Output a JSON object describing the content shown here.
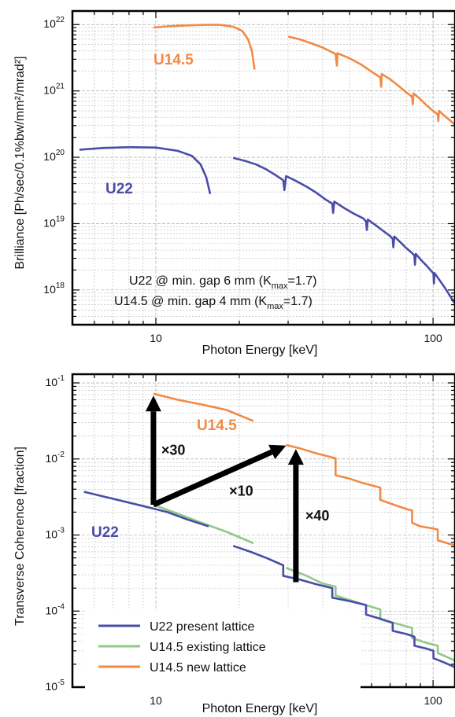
{
  "colors": {
    "u22": "#4a4da8",
    "u145_existing": "#90c987",
    "u145_new": "#f28a45",
    "arrow": "#000000"
  },
  "chart_data": [
    {
      "type": "line",
      "ylabel": "Brilliance  [Ph/sec/0.1%bw/mm²/mrad²]",
      "xlabel": "Photon Energy [keV]",
      "xscale": "log",
      "yscale": "log",
      "xlim": [
        5,
        120
      ],
      "ylim": [
        3e+17,
        1.6e+22
      ],
      "x_ticks": [
        {
          "v": 10,
          "label": "10"
        },
        {
          "v": 100,
          "label": "100"
        }
      ],
      "y_ticks": [
        {
          "v": 1e+18,
          "base": "10",
          "exp": "18"
        },
        {
          "v": 1e+19,
          "base": "10",
          "exp": "19"
        },
        {
          "v": 1e+20,
          "base": "10",
          "exp": "20"
        },
        {
          "v": 1e+21,
          "base": "10",
          "exp": "21"
        },
        {
          "v": 1e+22,
          "base": "10",
          "exp": "22"
        }
      ],
      "grid": true,
      "annotations": [
        {
          "text": "U14.5",
          "series": "u145_new"
        },
        {
          "text": "U22",
          "series": "u22"
        }
      ],
      "note_lines": [
        {
          "pre": "U22 @ min. gap 6 mm (K",
          "sub": "max",
          "post": "=1.7)"
        },
        {
          "pre": "U14.5 @ min. gap 4 mm (K",
          "sub": "max",
          "post": "=1.7)"
        }
      ],
      "series": [
        {
          "key": "u145_new",
          "segments": [
            [
              [
                9.8,
                9e+21
              ],
              [
                11,
                9.4e+21
              ],
              [
                13,
                9.7e+21
              ],
              [
                15,
                9.9e+21
              ],
              [
                17,
                9.9e+21
              ],
              [
                19,
                9.3e+21
              ],
              [
                20.5,
                8e+21
              ],
              [
                21.5,
                6e+21
              ],
              [
                22.2,
                4e+21
              ],
              [
                22.7,
                2.1e+21
              ]
            ],
            [
              [
                30,
                6.6e+21
              ],
              [
                33,
                6e+21
              ],
              [
                36,
                5.3e+21
              ],
              [
                40,
                4.5e+21
              ],
              [
                44.5,
                3.6e+21
              ],
              [
                45,
                2.4e+21
              ],
              [
                45.2,
                3.7e+21
              ],
              [
                50,
                3.1e+21
              ],
              [
                55,
                2.5e+21
              ],
              [
                60,
                1.95e+21
              ],
              [
                64.5,
                1.6e+21
              ],
              [
                65,
                1.15e+21
              ],
              [
                65.3,
                1.8e+21
              ],
              [
                70,
                1.5e+21
              ],
              [
                75,
                1.2e+21
              ],
              [
                80,
                9.5e+20
              ],
              [
                84,
                8.2e+20
              ],
              [
                84.5,
                6.3e+20
              ],
              [
                85,
                9.2e+20
              ],
              [
                90,
                7.5e+20
              ],
              [
                95,
                6e+20
              ],
              [
                100,
                5e+20
              ],
              [
                104,
                4.4e+20
              ],
              [
                104.5,
                3.5e+20
              ],
              [
                105,
                5e+20
              ],
              [
                110,
                4.2e+20
              ],
              [
                116,
                3.5e+20
              ],
              [
                121,
                3e+20
              ]
            ]
          ]
        },
        {
          "key": "u22",
          "segments": [
            [
              [
                5.3,
                1.3e+20
              ],
              [
                6.5,
                1.38e+20
              ],
              [
                8,
                1.42e+20
              ],
              [
                10,
                1.4e+20
              ],
              [
                12,
                1.25e+20
              ],
              [
                13.5,
                1.05e+20
              ],
              [
                14.5,
                7.8e+19
              ],
              [
                15.2,
                5e+19
              ],
              [
                15.7,
                2.8e+19
              ]
            ],
            [
              [
                19,
                9.8e+19
              ],
              [
                21,
                8.8e+19
              ],
              [
                23,
                7.8e+19
              ],
              [
                25,
                6.6e+19
              ],
              [
                27,
                5.4e+19
              ],
              [
                28.8,
                4.5e+19
              ],
              [
                29.1,
                3.2e+19
              ],
              [
                29.5,
                5.2e+19
              ],
              [
                32,
                4.4e+19
              ],
              [
                35,
                3.6e+19
              ],
              [
                38,
                2.9e+19
              ],
              [
                41,
                2.3e+19
              ],
              [
                43.3,
                2e+19
              ],
              [
                43.6,
                1.45e+19
              ],
              [
                44,
                2.15e+19
              ],
              [
                48,
                1.7e+19
              ],
              [
                52,
                1.4e+19
              ],
              [
                56,
                1.2e+19
              ],
              [
                57.3,
                1.08e+19
              ],
              [
                57.7,
                8e+18
              ],
              [
                58.2,
                1.15e+19
              ],
              [
                62,
                9.5e+18
              ],
              [
                66,
                7.8e+18
              ],
              [
                70,
                6.5e+18
              ],
              [
                71.5,
                5.9e+18
              ],
              [
                71.9,
                4.4e+18
              ],
              [
                72.5,
                6.4e+18
              ],
              [
                76,
                5.3e+18
              ],
              [
                80,
                4.3e+18
              ],
              [
                84,
                3.6e+18
              ],
              [
                85.7,
                3.3e+18
              ],
              [
                86,
                2.4e+18
              ],
              [
                86.6,
                3.5e+18
              ],
              [
                90,
                2.9e+18
              ],
              [
                95,
                2.3e+18
              ],
              [
                100,
                1.8e+18
              ],
              [
                100.3,
                1.75e+18
              ],
              [
                100.7,
                1.25e+18
              ],
              [
                101.2,
                1.8e+18
              ],
              [
                105,
                1.45e+18
              ],
              [
                110,
                1.1e+18
              ],
              [
                115,
                8.2e+17
              ],
              [
                120,
                6.2e+17
              ]
            ]
          ]
        }
      ]
    },
    {
      "type": "line",
      "ylabel": "Transverse Coherence [fraction]",
      "xlabel": "Photon Energy [keV]",
      "xscale": "log",
      "yscale": "log",
      "xlim": [
        5,
        120
      ],
      "ylim": [
        1e-05,
        0.13
      ],
      "x_ticks": [
        {
          "v": 10,
          "label": "10"
        },
        {
          "v": 100,
          "label": "100"
        }
      ],
      "y_ticks": [
        {
          "v": 1e-05,
          "base": "10",
          "exp": "-5"
        },
        {
          "v": 0.0001,
          "base": "10",
          "exp": "-4"
        },
        {
          "v": 0.001,
          "base": "10",
          "exp": "-3"
        },
        {
          "v": 0.01,
          "base": "10",
          "exp": "-2"
        },
        {
          "v": 0.1,
          "base": "10",
          "exp": "-1"
        }
      ],
      "grid": true,
      "annotations": [
        {
          "text": "U14.5",
          "series": "u145_new"
        },
        {
          "text": "U22",
          "series": "u22"
        }
      ],
      "arrows": [
        {
          "from": [
            9.8,
            0.0025
          ],
          "to": [
            9.8,
            0.068
          ],
          "label": "×30"
        },
        {
          "from": [
            9.8,
            0.0025
          ],
          "to": [
            29.5,
            0.015
          ],
          "label": "×10"
        },
        {
          "from": [
            32,
            0.00024
          ],
          "to": [
            32,
            0.0135
          ],
          "label": "×40"
        }
      ],
      "legend": {
        "position": "bottom-left",
        "entries": [
          {
            "series": "u22",
            "label": "U22 present lattice"
          },
          {
            "series": "u145_existing",
            "label": "U14.5 existing lattice"
          },
          {
            "series": "u145_new",
            "label": "U14.5 new lattice"
          }
        ]
      },
      "series": [
        {
          "key": "u145_new",
          "segments": [
            [
              [
                9.8,
                0.072
              ],
              [
                12,
                0.06
              ],
              [
                15,
                0.051
              ],
              [
                18,
                0.044
              ],
              [
                22.5,
                0.0315
              ]
            ],
            [
              [
                29.5,
                0.0153
              ],
              [
                33,
                0.0138
              ],
              [
                38,
                0.0118
              ],
              [
                44.5,
                0.0102
              ],
              [
                44.5,
                0.0061
              ],
              [
                50,
                0.0055
              ],
              [
                55,
                0.0049
              ],
              [
                64.5,
                0.0042
              ],
              [
                64.5,
                0.0029
              ],
              [
                70,
                0.0026
              ],
              [
                80,
                0.0022
              ],
              [
                84,
                0.0021
              ],
              [
                84,
                0.00145
              ],
              [
                90,
                0.0013
              ],
              [
                100,
                0.00122
              ],
              [
                104,
                0.00118
              ],
              [
                104,
                0.00085
              ],
              [
                110,
                0.0008
              ],
              [
                121,
                0.00072
              ]
            ]
          ]
        },
        {
          "key": "u145_existing",
          "segments": [
            [
              [
                9.8,
                0.0025
              ],
              [
                12,
                0.0019
              ],
              [
                15,
                0.0014
              ],
              [
                18,
                0.0011
              ],
              [
                22.5,
                0.00078
              ]
            ],
            [
              [
                29.5,
                0.00037
              ],
              [
                35,
                0.00029
              ],
              [
                40,
                0.00023
              ],
              [
                44.5,
                0.00021
              ],
              [
                44.5,
                0.00016
              ],
              [
                50,
                0.00014
              ],
              [
                55,
                0.000125
              ],
              [
                64.5,
                0.000105
              ],
              [
                64.5,
                7.8e-05
              ],
              [
                72,
                7e-05
              ],
              [
                84,
                6e-05
              ],
              [
                84,
                4.4e-05
              ],
              [
                95,
                3.8e-05
              ],
              [
                104,
                3.5e-05
              ],
              [
                104,
                2.8e-05
              ],
              [
                112,
                2.5e-05
              ],
              [
                121,
                2.2e-05
              ]
            ]
          ]
        },
        {
          "key": "u22",
          "segments": [
            [
              [
                5.5,
                0.0037
              ],
              [
                7,
                0.003
              ],
              [
                9,
                0.0024
              ],
              [
                11,
                0.002
              ],
              [
                13,
                0.0016
              ],
              [
                15.5,
                0.0013
              ]
            ],
            [
              [
                19,
                0.00072
              ],
              [
                22,
                0.0006
              ],
              [
                25,
                0.0005
              ],
              [
                28.8,
                0.0004
              ],
              [
                28.8,
                0.00029
              ],
              [
                33,
                0.00026
              ],
              [
                38,
                0.000225
              ],
              [
                43.3,
                0.0002
              ],
              [
                43.3,
                0.00015
              ],
              [
                50,
                0.000135
              ],
              [
                57.3,
                0.00012
              ],
              [
                57.3,
                9e-05
              ],
              [
                64,
                8e-05
              ],
              [
                71.5,
                7e-05
              ],
              [
                71.5,
                5.5e-05
              ],
              [
                80,
                5e-05
              ],
              [
                85.7,
                4.6e-05
              ],
              [
                85.7,
                3.5e-05
              ],
              [
                95,
                3.2e-05
              ],
              [
                100.3,
                3e-05
              ],
              [
                100.3,
                2.4e-05
              ],
              [
                110,
                2.1e-05
              ],
              [
                121,
                1.8e-05
              ]
            ]
          ]
        }
      ]
    }
  ]
}
